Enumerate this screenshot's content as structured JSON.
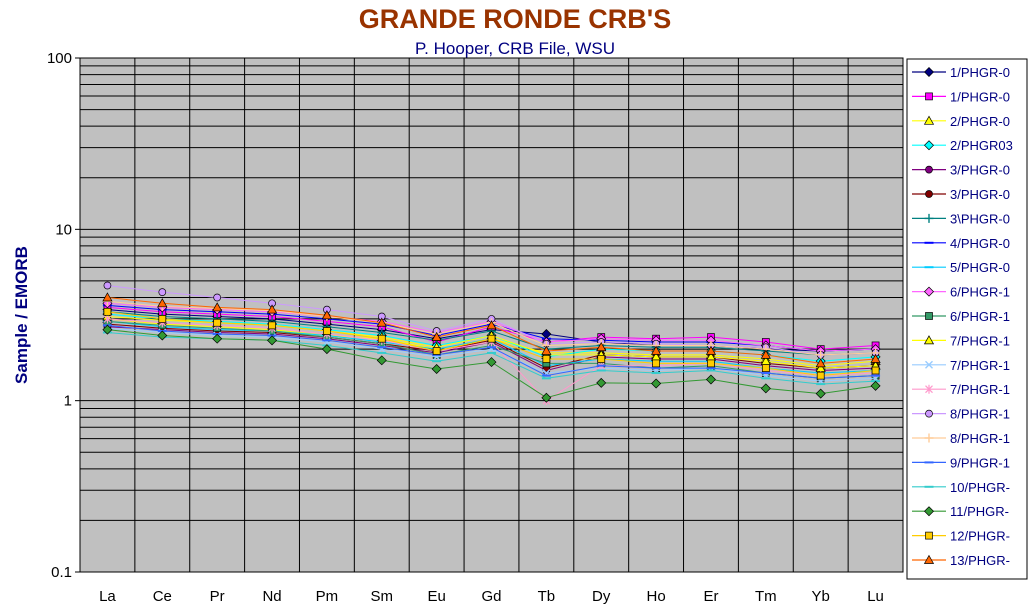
{
  "chart_data": {
    "type": "line",
    "title": "GRANDE RONDE CRB'S",
    "subtitle": "P. Hooper, CRB File, WSU",
    "ylabel": "Sample / EMORB",
    "xlabel": "",
    "yscale": "log",
    "ylim": [
      0.1,
      100
    ],
    "yticks": [
      "100",
      "10",
      "1",
      "0.1"
    ],
    "grid": true,
    "legend_position": "right",
    "categories": [
      "La",
      "Ce",
      "Pr",
      "Nd",
      "Pm",
      "Sm",
      "Eu",
      "Gd",
      "Tb",
      "Dy",
      "Ho",
      "Er",
      "Tm",
      "Yb",
      "Lu"
    ],
    "colors": {
      "plot_bg": "#c0c0c0",
      "title": "#993300",
      "subtitle": "#000080",
      "ylabel": "#000080",
      "legend_text": "#000080"
    },
    "series": [
      {
        "name": "1/PHGR-0",
        "color": "#000080",
        "marker": "diamond",
        "values": [
          3.4,
          3.2,
          3.1,
          3.0,
          2.8,
          2.6,
          2.3,
          2.6,
          2.45,
          2.2,
          2.1,
          2.1,
          2.0,
          1.95,
          2.0
        ]
      },
      {
        "name": "1/PHGR-0",
        "color": "#ff00ff",
        "marker": "square",
        "values": [
          3.5,
          3.3,
          3.2,
          3.1,
          2.9,
          2.7,
          2.2,
          2.7,
          2.2,
          2.35,
          2.3,
          2.35,
          2.2,
          2.0,
          2.1
        ]
      },
      {
        "name": "2/PHGR-0",
        "color": "#ffff00",
        "marker": "triangle",
        "values": [
          3.0,
          2.8,
          2.7,
          2.6,
          2.4,
          2.3,
          2.0,
          2.3,
          1.9,
          1.9,
          1.85,
          1.85,
          1.75,
          1.6,
          1.7
        ]
      },
      {
        "name": "2/PHGR03",
        "color": "#00ffff",
        "marker": "diamond",
        "values": [
          3.2,
          3.0,
          2.9,
          2.8,
          2.6,
          2.4,
          2.1,
          2.4,
          1.8,
          2.0,
          1.95,
          1.95,
          1.85,
          1.7,
          1.8
        ]
      },
      {
        "name": "3/PHGR-0",
        "color": "#800080",
        "marker": "circle",
        "values": [
          2.7,
          2.6,
          2.5,
          2.45,
          2.3,
          2.1,
          1.9,
          2.2,
          1.5,
          1.8,
          1.75,
          1.75,
          1.6,
          1.5,
          1.55
        ]
      },
      {
        "name": "3/PHGR-0",
        "color": "#800000",
        "marker": "circle",
        "values": [
          2.8,
          2.65,
          2.55,
          2.5,
          2.35,
          2.15,
          1.95,
          2.25,
          1.55,
          1.85,
          1.8,
          1.8,
          1.65,
          1.55,
          1.6
        ]
      },
      {
        "name": "3\\PHGR-0",
        "color": "#008080",
        "marker": "plus",
        "values": [
          3.3,
          3.1,
          3.0,
          2.9,
          2.7,
          2.5,
          2.25,
          2.55,
          2.0,
          2.1,
          2.05,
          2.05,
          1.95,
          1.85,
          1.9
        ]
      },
      {
        "name": "4/PHGR-0",
        "color": "#0000ff",
        "marker": "dash",
        "values": [
          3.6,
          3.4,
          3.3,
          3.2,
          3.0,
          2.8,
          2.4,
          2.8,
          2.3,
          2.25,
          2.2,
          2.2,
          2.1,
          1.95,
          2.0
        ]
      },
      {
        "name": "5/PHGR-0",
        "color": "#00ccff",
        "marker": "dash",
        "values": [
          2.9,
          2.7,
          2.6,
          2.55,
          2.4,
          2.2,
          2.0,
          2.3,
          1.6,
          1.75,
          1.7,
          1.7,
          1.55,
          1.45,
          1.5
        ]
      },
      {
        "name": "6/PHGR-1",
        "color": "#ff66ff",
        "marker": "diamond",
        "values": [
          3.7,
          3.5,
          3.4,
          3.3,
          3.1,
          2.9,
          2.5,
          2.9,
          2.2,
          2.3,
          2.25,
          2.25,
          2.1,
          1.95,
          2.0
        ]
      },
      {
        "name": "6/PHGR-1",
        "color": "#339966",
        "marker": "square",
        "values": [
          2.9,
          2.75,
          2.65,
          2.55,
          2.35,
          2.15,
          1.85,
          2.1,
          1.65,
          1.65,
          1.55,
          1.6,
          1.45,
          1.35,
          1.4
        ]
      },
      {
        "name": "7/PHGR-1",
        "color": "#ffff00",
        "marker": "triangle",
        "values": [
          3.1,
          2.95,
          2.85,
          2.75,
          2.55,
          2.35,
          2.05,
          2.4,
          1.85,
          1.85,
          1.8,
          1.8,
          1.7,
          1.55,
          1.6
        ]
      },
      {
        "name": "7/PHGR-1",
        "color": "#99ccff",
        "marker": "x",
        "values": [
          2.65,
          2.5,
          2.4,
          2.35,
          2.2,
          2.0,
          1.8,
          2.0,
          1.45,
          1.55,
          1.5,
          1.55,
          1.4,
          1.3,
          1.35
        ]
      },
      {
        "name": "7/PHGR-1",
        "color": "#ff99cc",
        "marker": "star",
        "values": [
          3.0,
          2.85,
          2.75,
          2.65,
          2.45,
          2.25,
          1.95,
          2.2,
          1.0,
          1.6,
          1.6,
          1.65,
          1.5,
          1.4,
          1.45
        ]
      },
      {
        "name": "8/PHGR-1",
        "color": "#cc99ff",
        "marker": "circle",
        "values": [
          4.7,
          4.3,
          4.0,
          3.7,
          3.4,
          3.1,
          2.55,
          3.0,
          2.15,
          2.2,
          2.15,
          2.1,
          2.05,
          1.85,
          1.9
        ]
      },
      {
        "name": "8/PHGR-1",
        "color": "#ffcc99",
        "marker": "plus",
        "values": [
          3.8,
          3.55,
          3.45,
          3.35,
          3.1,
          2.85,
          2.45,
          2.85,
          2.1,
          2.15,
          2.1,
          2.1,
          2.0,
          1.85,
          1.9
        ]
      },
      {
        "name": "9/PHGR-1",
        "color": "#3366ff",
        "marker": "dash",
        "values": [
          2.75,
          2.55,
          2.45,
          2.4,
          2.25,
          2.05,
          1.85,
          2.05,
          1.4,
          1.6,
          1.55,
          1.55,
          1.45,
          1.35,
          1.4
        ]
      },
      {
        "name": "10/PHGR-",
        "color": "#33cccc",
        "marker": "dash",
        "values": [
          2.5,
          2.35,
          2.3,
          2.25,
          2.1,
          1.9,
          1.7,
          1.9,
          1.35,
          1.5,
          1.45,
          1.5,
          1.35,
          1.25,
          1.3
        ]
      },
      {
        "name": "11/PHGR-",
        "color": "#339933",
        "marker": "diamond",
        "values": [
          2.6,
          2.4,
          2.3,
          2.25,
          2.0,
          1.72,
          1.53,
          1.68,
          1.04,
          1.27,
          1.26,
          1.33,
          1.18,
          1.1,
          1.22
        ]
      },
      {
        "name": "12/PHGR-",
        "color": "#ffcc00",
        "marker": "square",
        "values": [
          3.3,
          3.0,
          2.85,
          2.75,
          2.55,
          2.3,
          1.95,
          2.3,
          1.75,
          1.75,
          1.65,
          1.65,
          1.55,
          1.4,
          1.5
        ]
      },
      {
        "name": "13/PHGR-",
        "color": "#ff6600",
        "marker": "triangle",
        "values": [
          4.0,
          3.7,
          3.5,
          3.4,
          3.15,
          2.85,
          2.35,
          2.75,
          1.95,
          2.05,
          1.95,
          1.95,
          1.85,
          1.65,
          1.75
        ]
      }
    ]
  }
}
